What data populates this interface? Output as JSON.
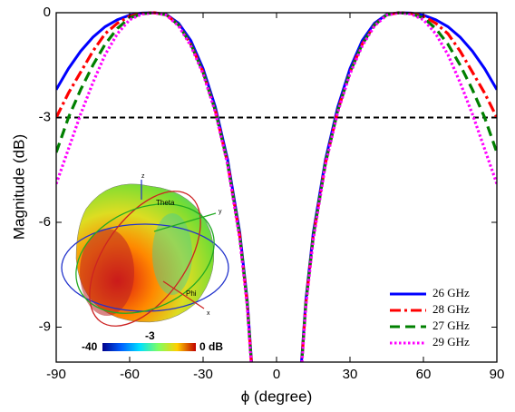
{
  "chart_data": {
    "type": "line",
    "x_label": "ϕ (degree)",
    "y_label": "Magnitude (dB)",
    "x": [
      -90,
      -85,
      -80,
      -75,
      -70,
      -65,
      -60,
      -55,
      -50,
      -45,
      -40,
      -35,
      -30,
      -25,
      -20,
      -15,
      -12,
      -10,
      0,
      10,
      12,
      15,
      20,
      25,
      30,
      35,
      40,
      45,
      50,
      55,
      60,
      65,
      70,
      75,
      80,
      85,
      90
    ],
    "series": [
      {
        "name": "26 GHz",
        "color": "#0000ff",
        "dash": "solid",
        "values": [
          -2.2,
          -1.6,
          -1.1,
          -0.7,
          -0.4,
          -0.2,
          -0.07,
          -0.01,
          0,
          -0.05,
          -0.3,
          -0.8,
          -1.6,
          -2.7,
          -4.2,
          -6.3,
          -8.2,
          -10.2,
          null,
          -10.2,
          -8.2,
          -6.3,
          -4.2,
          -2.7,
          -1.6,
          -0.8,
          -0.3,
          -0.05,
          0,
          -0.01,
          -0.07,
          -0.2,
          -0.4,
          -0.7,
          -1.1,
          -1.6,
          -2.2
        ]
      },
      {
        "name": "28 GHz",
        "color": "#ff0000",
        "dash": "dashdot",
        "values": [
          -3.0,
          -2.3,
          -1.7,
          -1.1,
          -0.6,
          -0.3,
          -0.1,
          -0.02,
          0,
          -0.06,
          -0.35,
          -0.9,
          -1.7,
          -2.8,
          -4.3,
          -6.4,
          -8.3,
          -10.3,
          null,
          -10.3,
          -8.3,
          -6.4,
          -4.3,
          -2.8,
          -1.7,
          -0.9,
          -0.35,
          -0.06,
          0,
          -0.02,
          -0.1,
          -0.3,
          -0.6,
          -1.1,
          -1.7,
          -2.3,
          -3.0
        ]
      },
      {
        "name": "27 GHz",
        "color": "#008000",
        "dash": "dashed",
        "values": [
          -4.0,
          -3.0,
          -2.2,
          -1.5,
          -0.9,
          -0.45,
          -0.15,
          -0.03,
          0,
          -0.06,
          -0.35,
          -0.9,
          -1.7,
          -2.8,
          -4.3,
          -6.4,
          -8.3,
          -10.3,
          null,
          -10.3,
          -8.3,
          -6.4,
          -4.3,
          -2.8,
          -1.7,
          -0.9,
          -0.35,
          -0.06,
          0,
          -0.03,
          -0.15,
          -0.45,
          -0.9,
          -1.5,
          -2.2,
          -3.0,
          -4.0
        ]
      },
      {
        "name": "29 GHz",
        "color": "#ff00ff",
        "dash": "dotted",
        "values": [
          -4.9,
          -3.9,
          -2.9,
          -2.0,
          -1.2,
          -0.6,
          -0.2,
          -0.04,
          0,
          -0.07,
          -0.38,
          -0.95,
          -1.75,
          -2.85,
          -4.35,
          -6.5,
          -8.4,
          -10.4,
          null,
          -10.4,
          -8.4,
          -6.5,
          -4.35,
          -2.85,
          -1.75,
          -0.95,
          -0.38,
          -0.07,
          0,
          -0.04,
          -0.2,
          -0.6,
          -1.2,
          -2.0,
          -2.9,
          -3.9,
          -4.9
        ]
      }
    ],
    "reference_line": {
      "value": -3,
      "color": "#000000"
    },
    "xlim": [
      -90,
      90
    ],
    "xticks": [
      -90,
      -60,
      -30,
      0,
      30,
      60,
      90
    ],
    "ylim": [
      -10,
      0
    ],
    "yticks": [
      0,
      -3,
      -6,
      -9
    ],
    "legend": "lower right",
    "inset": {
      "colorbar_labels": [
        "-40",
        "-3",
        "0 dB"
      ],
      "axis_labels": [
        "Theta",
        "Phi",
        "x",
        "y",
        "z"
      ]
    }
  }
}
